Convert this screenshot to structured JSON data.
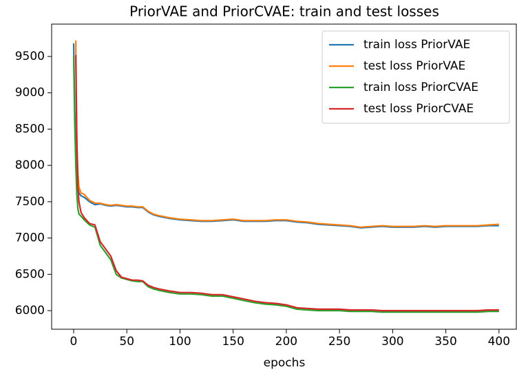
{
  "chart_data": {
    "type": "line",
    "title": "PriorVAE and PriorCVAE: train and test losses",
    "x_label": "epochs",
    "x": [
      0,
      1,
      2,
      3,
      4,
      5,
      7,
      10,
      15,
      20,
      25,
      30,
      35,
      40,
      45,
      50,
      55,
      60,
      65,
      70,
      75,
      80,
      90,
      100,
      110,
      120,
      130,
      140,
      150,
      160,
      170,
      180,
      190,
      200,
      210,
      220,
      230,
      240,
      250,
      260,
      270,
      280,
      290,
      300,
      310,
      320,
      330,
      340,
      350,
      360,
      370,
      380,
      390,
      400
    ],
    "series": [
      {
        "name": "train loss PriorVAE",
        "color": "#1f77b4",
        "values": [
          9680,
          8800,
          8200,
          7900,
          7700,
          7620,
          7580,
          7560,
          7500,
          7460,
          7470,
          7450,
          7440,
          7450,
          7440,
          7430,
          7430,
          7420,
          7420,
          7360,
          7320,
          7300,
          7270,
          7250,
          7240,
          7230,
          7230,
          7240,
          7250,
          7230,
          7230,
          7230,
          7240,
          7240,
          7220,
          7210,
          7190,
          7180,
          7170,
          7160,
          7140,
          7150,
          7160,
          7150,
          7150,
          7150,
          7160,
          7150,
          7160,
          7160,
          7160,
          7160,
          7170,
          7170
        ]
      },
      {
        "name": "test loss PriorVAE",
        "color": "#ff7f0e",
        "values": [
          null,
          null,
          9720,
          8300,
          7900,
          7700,
          7620,
          7600,
          7520,
          7480,
          7480,
          7460,
          7450,
          7460,
          7450,
          7440,
          7440,
          7430,
          7430,
          7370,
          7330,
          7310,
          7280,
          7260,
          7250,
          7240,
          7240,
          7250,
          7260,
          7240,
          7240,
          7240,
          7250,
          7250,
          7230,
          7220,
          7200,
          7190,
          7180,
          7170,
          7150,
          7160,
          7170,
          7160,
          7160,
          7160,
          7170,
          7160,
          7170,
          7170,
          7170,
          7170,
          7180,
          7190
        ]
      },
      {
        "name": "train loss PriorCVAE",
        "color": "#2ca02c",
        "values": [
          9500,
          8600,
          8000,
          7600,
          7400,
          7330,
          7300,
          7250,
          7180,
          7150,
          6900,
          6800,
          6700,
          6500,
          6450,
          6430,
          6410,
          6400,
          6400,
          6330,
          6300,
          6280,
          6250,
          6230,
          6230,
          6220,
          6200,
          6200,
          6170,
          6140,
          6110,
          6090,
          6080,
          6060,
          6020,
          6010,
          6000,
          6000,
          6000,
          5990,
          5990,
          5990,
          5980,
          5980,
          5980,
          5980,
          5980,
          5980,
          5980,
          5980,
          5980,
          5980,
          5990,
          5990
        ]
      },
      {
        "name": "test loss PriorCVAE",
        "color": "#d62728",
        "values": [
          null,
          null,
          9520,
          8400,
          7700,
          7500,
          7350,
          7280,
          7200,
          7180,
          6950,
          6850,
          6750,
          6550,
          6460,
          6440,
          6420,
          6420,
          6410,
          6350,
          6320,
          6300,
          6270,
          6250,
          6250,
          6240,
          6220,
          6220,
          6190,
          6160,
          6130,
          6110,
          6100,
          6080,
          6040,
          6030,
          6020,
          6020,
          6020,
          6010,
          6010,
          6010,
          6000,
          6000,
          6000,
          6000,
          6000,
          6000,
          6000,
          6000,
          6000,
          6000,
          6010,
          6010
        ]
      }
    ],
    "xlim": [
      -20.7,
      416.3
    ],
    "xticks": [
      0,
      50,
      100,
      150,
      200,
      250,
      300,
      350,
      400
    ],
    "ylim": [
      5744,
      9946
    ],
    "yticks": [
      6000,
      6500,
      7000,
      7500,
      8000,
      8500,
      9000,
      9500
    ],
    "legend": "upper right"
  }
}
